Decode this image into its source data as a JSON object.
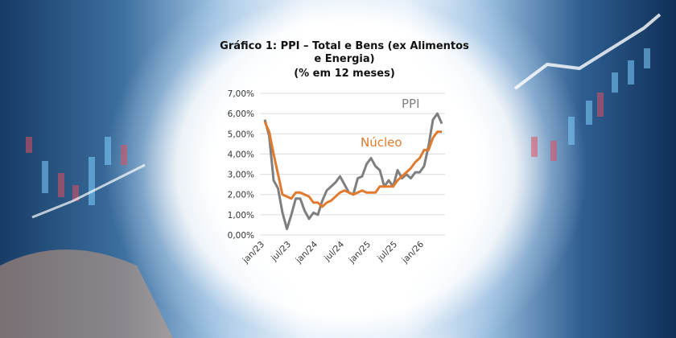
{
  "chart_data": {
    "type": "line",
    "title": "Gráfico 1: PPI – Total e Bens (ex Alimentos e Energia)",
    "subtitle": "(% em 12 meses)",
    "categories": [
      "jan/23",
      null,
      null,
      null,
      null,
      null,
      "jul/23",
      null,
      null,
      null,
      null,
      null,
      "jan/24",
      null,
      null,
      null,
      null,
      null,
      "jul/24",
      null,
      null,
      null,
      null,
      null,
      "jan/25",
      null,
      null,
      null,
      null,
      null,
      "jul/25",
      null,
      null,
      null,
      null,
      null,
      "jan/26",
      null,
      null,
      null,
      null
    ],
    "series": [
      {
        "name": "PPI",
        "color": "#7f7f7f",
        "values": [
          5.7,
          4.9,
          2.7,
          2.3,
          1.1,
          0.3,
          1.0,
          1.8,
          1.8,
          1.2,
          0.8,
          1.1,
          1.0,
          1.7,
          2.2,
          2.4,
          2.6,
          2.9,
          2.5,
          2.1,
          2.0,
          2.8,
          2.9,
          3.5,
          3.8,
          3.4,
          3.2,
          2.4,
          2.7,
          2.4,
          3.2,
          2.8,
          3.0,
          2.8,
          3.1,
          3.1,
          3.4,
          4.4,
          5.7,
          6.0,
          5.5
        ]
      },
      {
        "name": "Núcleo",
        "color": "#e07a2e",
        "values": [
          5.6,
          5.1,
          4.0,
          3.0,
          2.0,
          1.9,
          1.8,
          2.1,
          2.1,
          2.0,
          1.9,
          1.6,
          1.6,
          1.4,
          1.6,
          1.7,
          1.9,
          2.1,
          2.2,
          2.1,
          2.0,
          2.1,
          2.2,
          2.1,
          2.1,
          2.1,
          2.4,
          2.4,
          2.4,
          2.4,
          2.7,
          2.9,
          3.1,
          3.3,
          3.6,
          3.8,
          4.2,
          4.2,
          4.8,
          5.1,
          5.1
        ]
      }
    ],
    "ylim": [
      0,
      7
    ],
    "yticks": [
      {
        "value": 0,
        "label": "0,00%"
      },
      {
        "value": 1,
        "label": "1,00%"
      },
      {
        "value": 2,
        "label": "2,00%"
      },
      {
        "value": 3,
        "label": "3,00%"
      },
      {
        "value": 4,
        "label": "4,00%"
      },
      {
        "value": 5,
        "label": "5,00%"
      },
      {
        "value": 6,
        "label": "6,00%"
      },
      {
        "value": 7,
        "label": "7,00%"
      }
    ],
    "grid": true
  }
}
